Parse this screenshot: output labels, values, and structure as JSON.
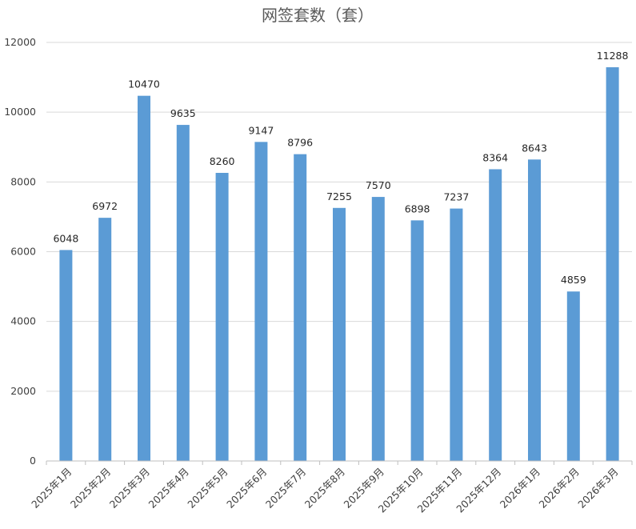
{
  "chart_data": {
    "type": "bar",
    "title": "网签套数（套）",
    "xlabel": "",
    "ylabel": "",
    "categories": [
      "2025年1月",
      "2025年2月",
      "2025年3月",
      "2025年4月",
      "2025年5月",
      "2025年6月",
      "2025年7月",
      "2025年8月",
      "2025年9月",
      "2025年10月",
      "2025年11月",
      "2025年12月",
      "2026年1月",
      "2026年2月",
      "2026年3月"
    ],
    "values": [
      6048,
      6972,
      10470,
      9635,
      8260,
      9147,
      8796,
      7255,
      7570,
      6898,
      7237,
      8364,
      8643,
      4859,
      11288
    ],
    "ylim": [
      0,
      12000
    ],
    "yticks": [
      0,
      2000,
      4000,
      6000,
      8000,
      10000,
      12000
    ],
    "grid": true,
    "legend": "none",
    "data_labels": true,
    "bar_color": "#5b9bd5"
  }
}
